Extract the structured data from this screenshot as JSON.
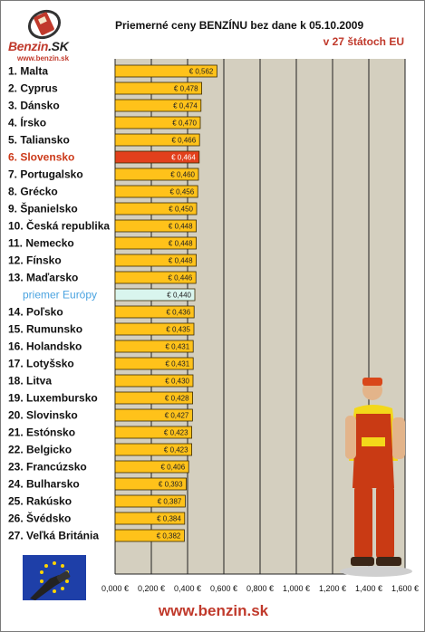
{
  "logo": {
    "brand_main": "Benzin",
    "brand_sk": ".SK",
    "url": "www.benzin.sk"
  },
  "chart_data": {
    "type": "bar",
    "orientation": "horizontal",
    "title": "Priemerné ceny BENZÍNU bez dane k 05.10.2009",
    "subtitle": "v 27 štátoch EU",
    "categories": [
      "1. Malta",
      "2. Cyprus",
      "3. Dánsko",
      "4. Írsko",
      "5. Taliansko",
      "6. Slovensko",
      "7. Portugalsko",
      "8. Grécko",
      "9. Španielsko",
      "10. Česká republika",
      "11. Nemecko",
      "12. Fínsko",
      "13. Maďarsko",
      "priemer Európy",
      "14. Poľsko",
      "15. Rumunsko",
      "16. Holandsko",
      "17. Lotyšsko",
      "18. Litva",
      "19. Luxembursko",
      "20. Slovinsko",
      "21. Estónsko",
      "22. Belgicko",
      "23. Francúzsko",
      "24. Bulharsko",
      "25. Rakúsko",
      "26. Švédsko",
      "27. Veľká Británia"
    ],
    "values": [
      0.562,
      0.478,
      0.474,
      0.47,
      0.466,
      0.464,
      0.46,
      0.456,
      0.45,
      0.448,
      0.448,
      0.448,
      0.446,
      0.44,
      0.436,
      0.435,
      0.431,
      0.431,
      0.43,
      0.428,
      0.427,
      0.423,
      0.423,
      0.406,
      0.393,
      0.387,
      0.384,
      0.382
    ],
    "value_labels": [
      "€ 0,562",
      "€ 0,478",
      "€ 0,474",
      "€ 0,470",
      "€ 0,466",
      "€ 0,464",
      "€ 0,460",
      "€ 0,456",
      "€ 0,450",
      "€ 0,448",
      "€ 0,448",
      "€ 0,448",
      "€ 0,446",
      "€ 0,440",
      "€ 0,436",
      "€ 0,435",
      "€ 0,431",
      "€ 0,431",
      "€ 0,430",
      "€ 0,428",
      "€ 0,427",
      "€ 0,423",
      "€ 0,423",
      "€ 0,406",
      "€ 0,393",
      "€ 0,387",
      "€ 0,384",
      "€ 0,382"
    ],
    "highlight": {
      "Slovensko": "6. Slovensko",
      "average": "priemer Európy"
    },
    "xlim": [
      0,
      1.6
    ],
    "x_ticks": [
      0,
      0.2,
      0.4,
      0.6,
      0.8,
      1.0,
      1.2,
      1.4,
      1.6
    ],
    "x_tick_labels": [
      "0,000 €",
      "0,200 €",
      "0,400 €",
      "0,600 €",
      "0,800 €",
      "1,000 €",
      "1,200 €",
      "1,400 €",
      "1,600 €"
    ],
    "grid": "vertical",
    "colors": {
      "bar": "#ffc21a",
      "slovakia_bar": "#e2401c",
      "slovakia_label": "#cc3a1a",
      "average_bar": "#d9f5ee",
      "average_label": "#4aa3e0",
      "plot_bg": "#d4cfbf",
      "bar_edge": "#3a2a00"
    }
  },
  "footer": {
    "url": "www.benzin.sk"
  }
}
